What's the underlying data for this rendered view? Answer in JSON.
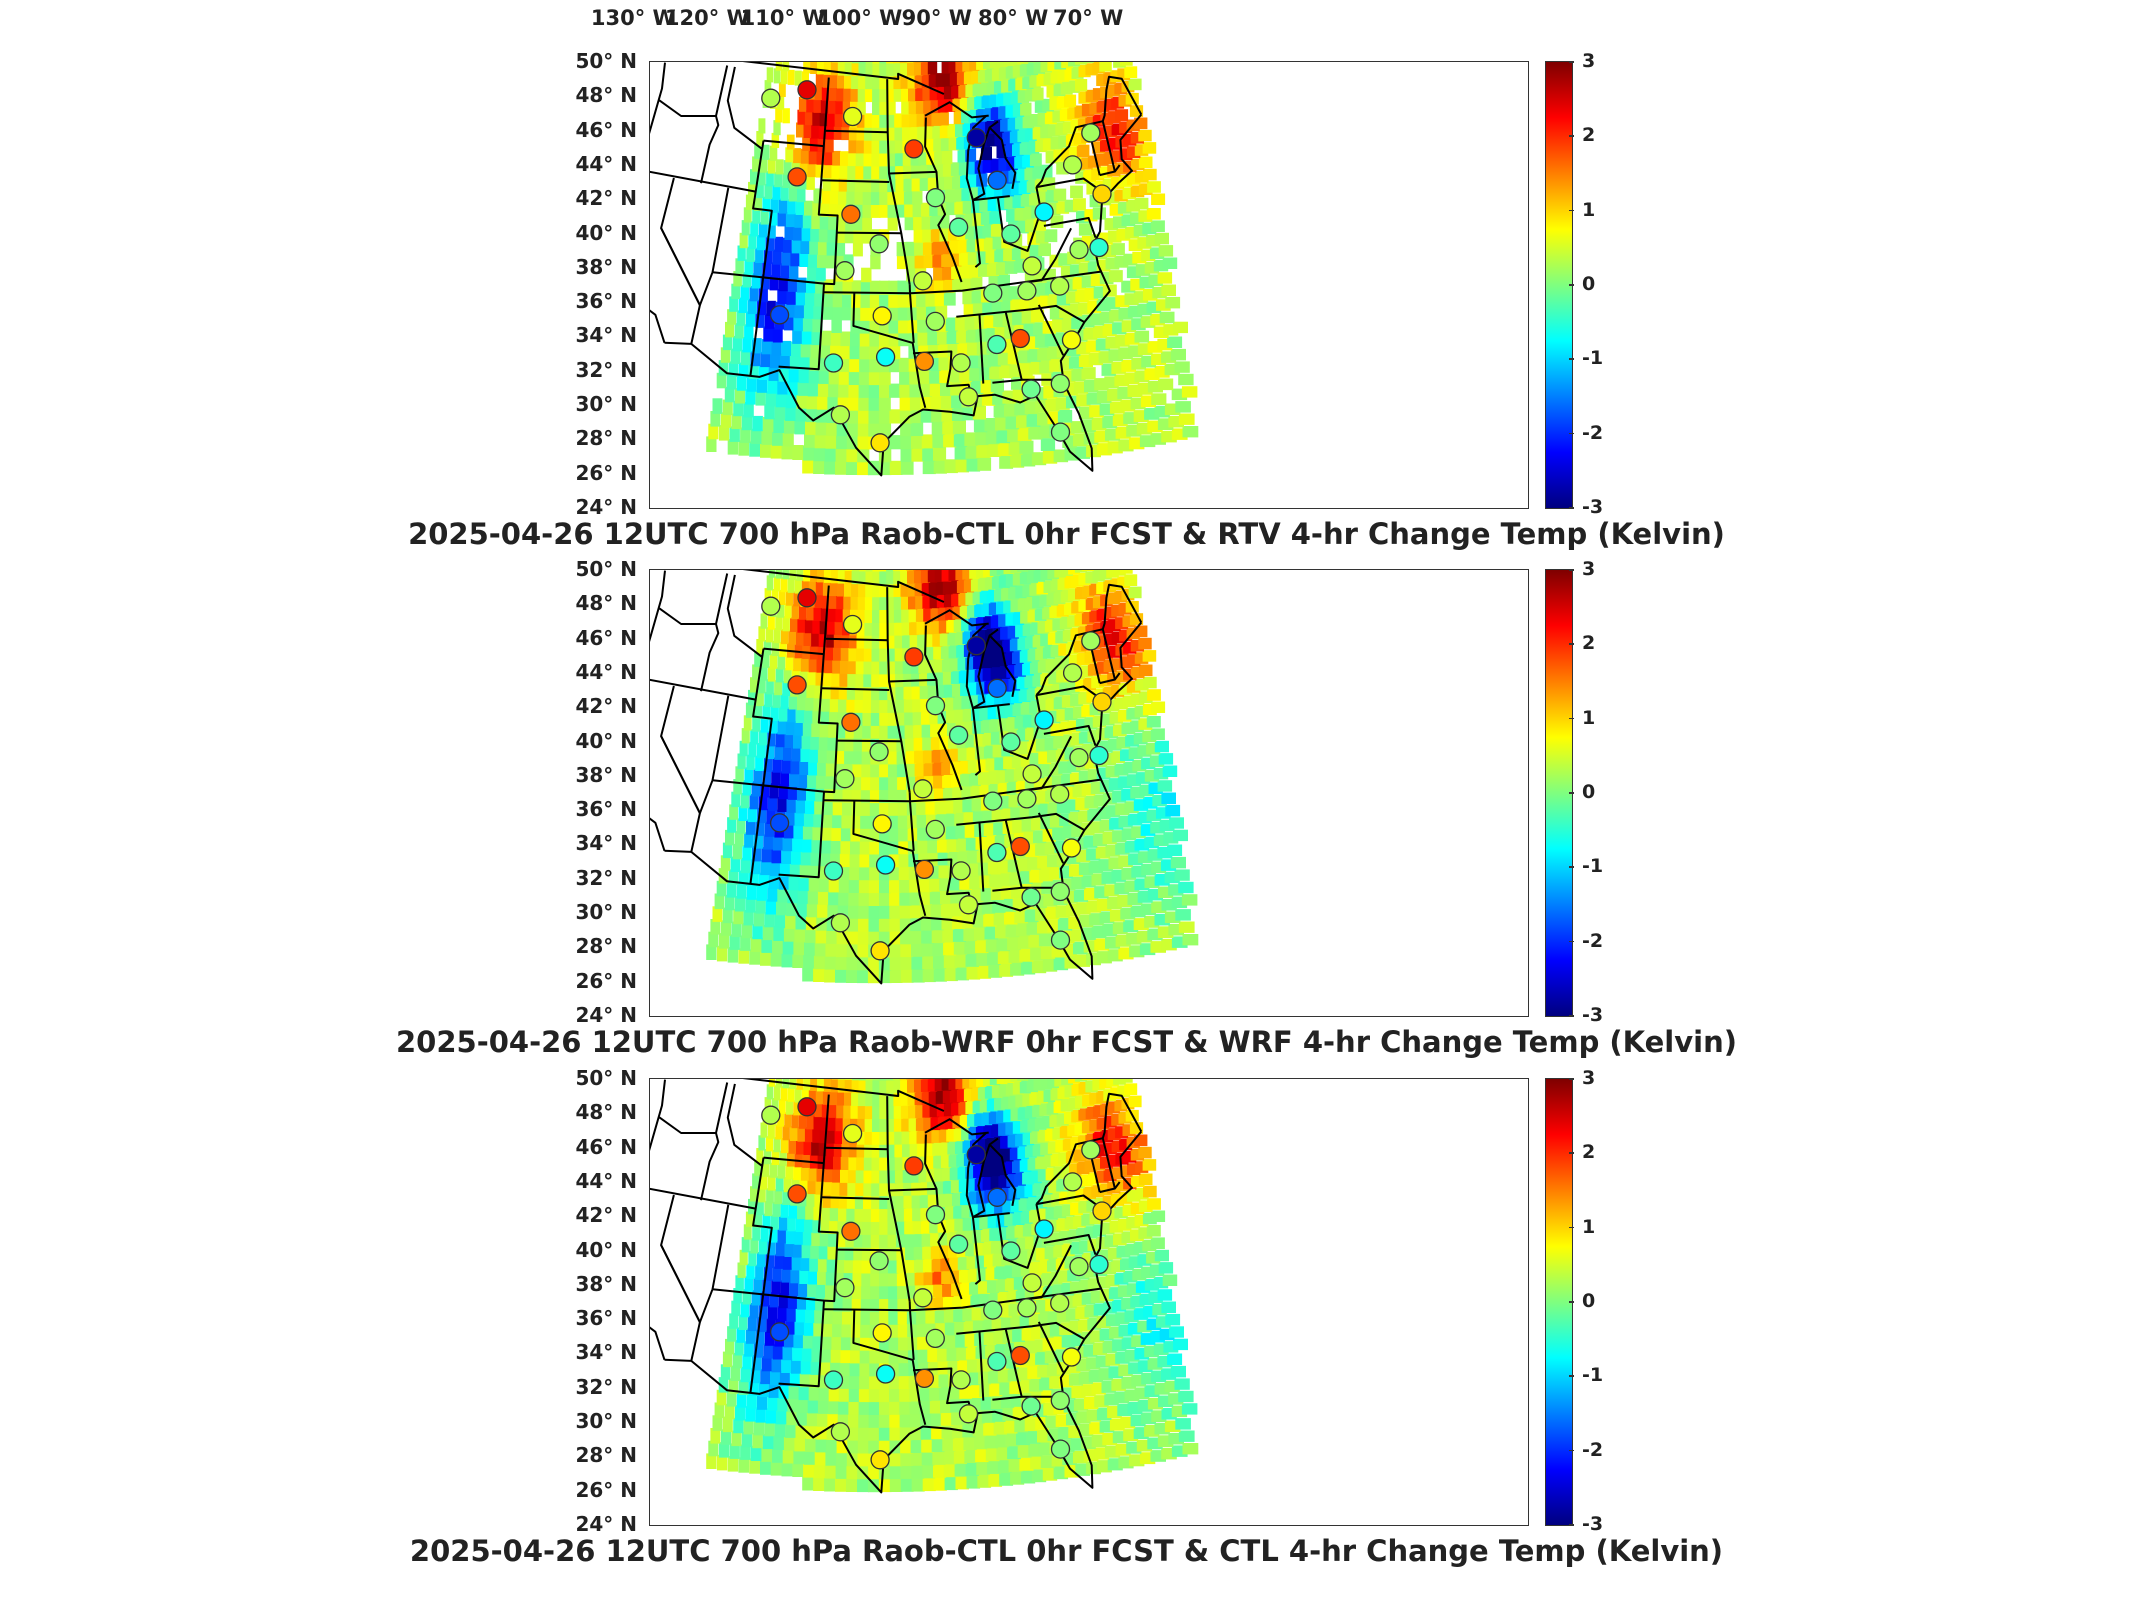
{
  "lon_axis": {
    "labels": [
      "130° W",
      "120° W",
      "110° W",
      "100° W",
      "90° W",
      "80° W",
      "70° W"
    ],
    "values": [
      -130,
      -120,
      -110,
      -100,
      -90,
      -80,
      -70
    ]
  },
  "lat_axis": {
    "labels": [
      "50° N",
      "48° N",
      "46° N",
      "44° N",
      "42° N",
      "40° N",
      "38° N",
      "36° N",
      "34° N",
      "32° N",
      "30° N",
      "28° N",
      "26° N",
      "24° N"
    ],
    "values": [
      50,
      48,
      46,
      44,
      42,
      40,
      38,
      36,
      34,
      32,
      30,
      28,
      26,
      24
    ]
  },
  "colorbar": {
    "ticks": [
      "3",
      "2",
      "1",
      "0",
      "-1",
      "-2",
      "-3"
    ],
    "range": [
      -3,
      3
    ],
    "colormap": "jet",
    "colors": [
      "#00007f",
      "#0000ff",
      "#007fff",
      "#00ffff",
      "#7fff7f",
      "#ffff00",
      "#ff7f00",
      "#ff0000",
      "#7f0000"
    ]
  },
  "panels": [
    {
      "title": "2025-04-26 12UTC 700 hPa Raob-CTL 0hr FCST & RTV 4-hr Change Temp (Kelvin)"
    },
    {
      "title": "2025-04-26 12UTC 700 hPa Raob-WRF 0hr FCST & WRF 4-hr Change Temp (Kelvin)"
    },
    {
      "title": "2025-04-26 12UTC 700 hPa Raob-CTL 0hr FCST & CTL 4-hr Change Temp (Kelvin)"
    }
  ],
  "raob_stations": [
    {
      "lon": -110.9,
      "lat": 47.5,
      "v": 0.3
    },
    {
      "lon": -106.6,
      "lat": 48.2,
      "v": 2.4
    },
    {
      "lon": -100.8,
      "lat": 46.8,
      "v": 0.6
    },
    {
      "lon": -93.6,
      "lat": 44.9,
      "v": 1.9
    },
    {
      "lon": -106.7,
      "lat": 43.1,
      "v": 1.8
    },
    {
      "lon": -100.6,
      "lat": 41.1,
      "v": 1.6
    },
    {
      "lon": -97.6,
      "lat": 39.4,
      "v": 0.1
    },
    {
      "lon": -101.0,
      "lat": 37.8,
      "v": 0.2
    },
    {
      "lon": -107.0,
      "lat": 35.0,
      "v": -1.8
    },
    {
      "lon": -101.7,
      "lat": 32.4,
      "v": -0.4
    },
    {
      "lon": -97.3,
      "lat": 35.2,
      "v": 0.8
    },
    {
      "lon": -97.0,
      "lat": 32.8,
      "v": -0.7
    },
    {
      "lon": -93.5,
      "lat": 32.5,
      "v": 1.4
    },
    {
      "lon": -92.3,
      "lat": 34.8,
      "v": 0.2
    },
    {
      "lon": -93.3,
      "lat": 37.2,
      "v": 0.4
    },
    {
      "lon": -91.5,
      "lat": 42.0,
      "v": 0.0
    },
    {
      "lon": -89.3,
      "lat": 40.2,
      "v": -0.2
    },
    {
      "lon": -90.2,
      "lat": 32.3,
      "v": 0.3
    },
    {
      "lon": -86.8,
      "lat": 33.2,
      "v": -0.3
    },
    {
      "lon": -84.6,
      "lat": 33.4,
      "v": 1.8
    },
    {
      "lon": -86.6,
      "lat": 36.2,
      "v": 0.0
    },
    {
      "lon": -83.3,
      "lat": 36.1,
      "v": 0.2
    },
    {
      "lon": -84.0,
      "lat": 39.5,
      "v": -0.2
    },
    {
      "lon": -82.4,
      "lat": 37.5,
      "v": 0.4
    },
    {
      "lon": -84.6,
      "lat": 42.7,
      "v": -1.6
    },
    {
      "lon": -86.3,
      "lat": 45.3,
      "v": -2.8
    },
    {
      "lon": -80.2,
      "lat": 40.5,
      "v": -0.8
    },
    {
      "lon": -80.0,
      "lat": 32.9,
      "v": 0.7
    },
    {
      "lon": -80.1,
      "lat": 36.1,
      "v": 0.3
    },
    {
      "lon": -77.5,
      "lat": 38.0,
      "v": 0.2
    },
    {
      "lon": -75.5,
      "lat": 37.9,
      "v": -0.5
    },
    {
      "lon": -73.8,
      "lat": 40.9,
      "v": 1.0
    },
    {
      "lon": -76.1,
      "lat": 42.9,
      "v": 0.3
    },
    {
      "lon": -73.2,
      "lat": 44.5,
      "v": 0.2
    },
    {
      "lon": -81.7,
      "lat": 30.5,
      "v": 0.1
    },
    {
      "lon": -82.4,
      "lat": 27.7,
      "v": 0.0
    },
    {
      "lon": -97.5,
      "lat": 27.8,
      "v": 0.9
    },
    {
      "lon": -100.9,
      "lat": 29.4,
      "v": 0.3
    },
    {
      "lon": -89.8,
      "lat": 30.3,
      "v": 0.4
    },
    {
      "lon": -84.3,
      "lat": 30.4,
      "v": -0.1
    }
  ]
}
